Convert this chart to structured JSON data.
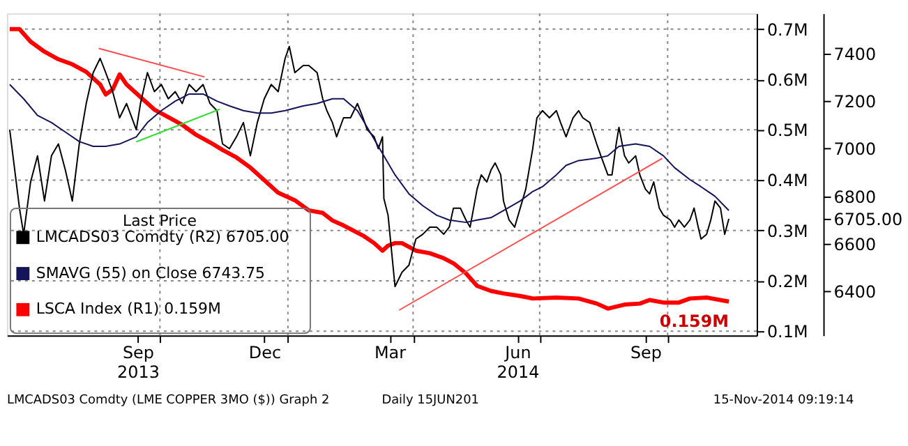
{
  "chart_data": {
    "type": "line",
    "legend_title": "Last Price",
    "legend": "bottom left",
    "grid": true,
    "xlim": [
      "2013-06-13",
      "2014-12-04"
    ],
    "xticks": [
      {
        "value": "2013-09-15",
        "label": "Sep\n2013"
      },
      {
        "value": "2013-10-01",
        "label": null
      },
      {
        "value": "2013-12-15",
        "label": "Dec"
      },
      {
        "value": "2014-01-01",
        "label": null
      },
      {
        "value": "2014-03-15",
        "label": "Mar"
      },
      {
        "value": "2014-04-01",
        "label": null
      },
      {
        "value": "2014-06-15",
        "label": "Jun\n2014"
      },
      {
        "value": "2014-07-01",
        "label": null
      },
      {
        "value": "2014-09-15",
        "label": "Sep"
      },
      {
        "value": "2014-10-01",
        "label": null
      }
    ],
    "ylim": [
      0.092,
      0.731
    ],
    "yticks": [
      {
        "value": 0.1,
        "label": "0.1M"
      },
      {
        "value": 0.2,
        "label": "0.2M"
      },
      {
        "value": 0.3,
        "label": "0.3M"
      },
      {
        "value": 0.4,
        "label": "0.4M"
      },
      {
        "value": 0.5,
        "label": "0.5M"
      },
      {
        "value": 0.6,
        "label": "0.6M"
      },
      {
        "value": 0.7,
        "label": "0.7M"
      }
    ],
    "y2lim": [
      6215,
      7569
    ],
    "y2ticks": [
      6400,
      6600,
      {
        "value": 6705,
        "label": "6705.00"
      },
      6800,
      7000,
      7200,
      7400
    ],
    "series": [
      {
        "name": "LMCADS03 Comdty  (R2)   6705.00",
        "color": "#000000",
        "axis": "y2",
        "x": [
          "2013-06-15",
          "2013-06-22",
          "2013-06-25",
          "2013-06-30",
          "2013-07-05",
          "2013-07-10",
          "2013-07-15",
          "2013-07-20",
          "2013-07-25",
          "2013-07-30",
          "2013-08-04",
          "2013-08-09",
          "2013-08-14",
          "2013-08-19",
          "2013-08-23",
          "2013-08-28",
          "2013-09-02",
          "2013-09-07",
          "2013-09-14",
          "2013-09-17",
          "2013-09-22",
          "2013-09-27",
          "2013-10-02",
          "2013-10-07",
          "2013-10-12",
          "2013-10-17",
          "2013-10-22",
          "2013-10-27",
          "2013-11-01",
          "2013-11-06",
          "2013-11-11",
          "2013-11-15",
          "2013-11-20",
          "2013-11-25",
          "2013-11-30",
          "2013-12-05",
          "2013-12-10",
          "2013-12-15",
          "2013-12-20",
          "2013-12-25",
          "2013-12-30",
          "2014-01-02",
          "2014-01-06",
          "2014-01-12",
          "2014-01-16",
          "2014-01-22",
          "2014-01-26",
          "2014-01-29",
          "2014-02-02",
          "2014-02-05",
          "2014-02-10",
          "2014-02-15",
          "2014-02-20",
          "2014-02-24",
          "2014-02-27",
          "2014-03-04",
          "2014-03-07",
          "2014-03-10",
          "2014-03-11",
          "2014-03-14",
          "2014-03-19",
          "2014-03-24",
          "2014-03-29",
          "2014-04-03",
          "2014-04-08",
          "2014-04-13",
          "2014-04-18",
          "2014-04-23",
          "2014-04-27",
          "2014-04-30",
          "2014-05-05",
          "2014-05-09",
          "2014-05-12",
          "2014-05-17",
          "2014-05-20",
          "2014-05-24",
          "2014-05-27",
          "2014-05-30",
          "2014-06-03",
          "2014-06-05",
          "2014-06-09",
          "2014-06-13",
          "2014-06-17",
          "2014-06-21",
          "2014-06-26",
          "2014-06-29",
          "2014-07-03",
          "2014-07-08",
          "2014-07-13",
          "2014-07-16",
          "2014-07-20",
          "2014-07-25",
          "2014-07-29",
          "2014-08-01",
          "2014-08-06",
          "2014-08-11",
          "2014-08-14",
          "2014-08-19",
          "2014-08-22",
          "2014-08-25",
          "2014-08-27",
          "2014-08-31",
          "2014-09-03",
          "2014-09-08",
          "2014-09-11",
          "2014-09-15",
          "2014-09-18",
          "2014-09-21",
          "2014-09-25",
          "2014-09-28",
          "2014-10-03",
          "2014-10-06",
          "2014-10-09",
          "2014-10-13",
          "2014-10-17",
          "2014-10-20",
          "2014-10-23",
          "2014-10-25",
          "2014-10-29",
          "2014-11-01",
          "2014-11-04",
          "2014-11-08",
          "2014-11-11",
          "2014-11-14"
        ],
        "values": [
          7080,
          6750,
          6640,
          6860,
          6970,
          6780,
          6970,
          7020,
          6910,
          6780,
          7020,
          7190,
          7320,
          7380,
          7320,
          7240,
          7130,
          7190,
          7080,
          7190,
          7320,
          7240,
          7270,
          7210,
          7240,
          7190,
          7270,
          7240,
          7270,
          7190,
          7160,
          7020,
          7000,
          7050,
          7110,
          6970,
          7110,
          7210,
          7270,
          7240,
          7380,
          7430,
          7320,
          7350,
          7350,
          7320,
          7210,
          7160,
          7110,
          7050,
          7130,
          7130,
          7190,
          7130,
          7080,
          7050,
          7000,
          7050,
          6790,
          6720,
          6420,
          6480,
          6510,
          6620,
          6640,
          6670,
          6670,
          6640,
          6670,
          6750,
          6750,
          6700,
          6670,
          6830,
          6890,
          6860,
          6910,
          6940,
          6890,
          6780,
          6700,
          6670,
          6750,
          6830,
          7000,
          7130,
          7160,
          7130,
          7160,
          7110,
          7050,
          7130,
          7160,
          7130,
          7110,
          7020,
          6970,
          6890,
          6890,
          7020,
          7090,
          6970,
          6940,
          6970,
          6890,
          6830,
          6810,
          6860,
          6750,
          6720,
          6700,
          6670,
          6700,
          6670,
          6700,
          6750,
          6670,
          6620,
          6640,
          6700,
          6780,
          6750,
          6640,
          6705
        ]
      },
      {
        "name": "SMAVG (55) on Close        6743.75",
        "color": "#14145a",
        "axis": "y2",
        "x": [
          "2013-06-15",
          "2013-06-25",
          "2013-07-05",
          "2013-07-15",
          "2013-07-25",
          "2013-08-04",
          "2013-08-14",
          "2013-08-23",
          "2013-09-02",
          "2013-09-14",
          "2013-09-22",
          "2013-10-02",
          "2013-10-12",
          "2013-10-22",
          "2013-11-01",
          "2013-11-11",
          "2013-11-20",
          "2013-11-30",
          "2013-12-10",
          "2013-12-20",
          "2013-12-30",
          "2014-01-12",
          "2014-01-22",
          "2014-02-02",
          "2014-02-10",
          "2014-02-20",
          "2014-02-27",
          "2014-03-10",
          "2014-03-19",
          "2014-03-29",
          "2014-04-08",
          "2014-04-18",
          "2014-04-27",
          "2014-05-09",
          "2014-05-17",
          "2014-05-27",
          "2014-06-05",
          "2014-06-17",
          "2014-06-26",
          "2014-07-03",
          "2014-07-13",
          "2014-07-20",
          "2014-07-29",
          "2014-08-11",
          "2014-08-19",
          "2014-08-27",
          "2014-09-08",
          "2014-09-18",
          "2014-09-28",
          "2014-10-06",
          "2014-10-17",
          "2014-10-25",
          "2014-11-04",
          "2014-11-14"
        ],
        "values": [
          7270,
          7210,
          7140,
          7110,
          7070,
          7030,
          7010,
          7010,
          7020,
          7050,
          7110,
          7160,
          7200,
          7230,
          7230,
          7200,
          7180,
          7160,
          7150,
          7150,
          7160,
          7180,
          7190,
          7210,
          7210,
          7160,
          7090,
          6980,
          6890,
          6810,
          6760,
          6720,
          6700,
          6690,
          6700,
          6710,
          6740,
          6780,
          6820,
          6840,
          6890,
          6930,
          6950,
          6960,
          6970,
          7010,
          7020,
          7010,
          6970,
          6920,
          6870,
          6840,
          6800,
          6740
        ]
      },
      {
        "name": "LSCA Index  (R1)              0.159M",
        "color": "#ff0000",
        "axis": "y",
        "x": [
          "2013-06-15",
          "2013-06-22",
          "2013-06-30",
          "2013-07-05",
          "2013-07-10",
          "2013-07-20",
          "2013-07-30",
          "2013-08-09",
          "2013-08-19",
          "2013-08-23",
          "2013-08-28",
          "2013-09-02",
          "2013-09-07",
          "2013-09-17",
          "2013-09-27",
          "2013-10-07",
          "2013-10-17",
          "2013-10-27",
          "2013-11-06",
          "2013-11-15",
          "2013-11-25",
          "2013-12-05",
          "2013-12-15",
          "2013-12-25",
          "2014-01-06",
          "2014-01-16",
          "2014-01-26",
          "2014-02-02",
          "2014-02-10",
          "2014-02-24",
          "2014-03-04",
          "2014-03-10",
          "2014-03-14",
          "2014-03-19",
          "2014-03-24",
          "2014-04-03",
          "2014-04-13",
          "2014-04-23",
          "2014-04-30",
          "2014-05-09",
          "2014-05-17",
          "2014-05-27",
          "2014-06-05",
          "2014-06-17",
          "2014-06-26",
          "2014-07-13",
          "2014-07-29",
          "2014-08-11",
          "2014-08-19",
          "2014-08-31",
          "2014-09-11",
          "2014-09-18",
          "2014-09-28",
          "2014-10-09",
          "2014-10-17",
          "2014-10-29",
          "2014-11-14"
        ],
        "values": [
          0.7,
          0.7,
          0.675,
          0.665,
          0.655,
          0.64,
          0.63,
          0.615,
          0.59,
          0.57,
          0.58,
          0.61,
          0.59,
          0.565,
          0.54,
          0.525,
          0.51,
          0.49,
          0.475,
          0.46,
          0.445,
          0.425,
          0.4,
          0.375,
          0.36,
          0.34,
          0.335,
          0.32,
          0.31,
          0.29,
          0.275,
          0.26,
          0.27,
          0.275,
          0.275,
          0.26,
          0.255,
          0.245,
          0.235,
          0.215,
          0.19,
          0.18,
          0.175,
          0.17,
          0.165,
          0.167,
          0.165,
          0.155,
          0.145,
          0.153,
          0.155,
          0.162,
          0.157,
          0.157,
          0.165,
          0.167,
          0.159
        ]
      },
      {
        "type": "line",
        "color": "#ff4d4d",
        "axis": "y2",
        "x": [
          "2013-08-18",
          "2013-11-02"
        ],
        "values": [
          7422,
          7302
        ]
      },
      {
        "type": "line",
        "color": "#33dd33",
        "axis": "y2",
        "x": [
          "2013-09-14",
          "2013-11-13"
        ],
        "values": [
          7029,
          7166
        ]
      },
      {
        "type": "line",
        "color": "#ff4d4d",
        "axis": "y2",
        "x": [
          "2014-03-22",
          "2014-09-27"
        ],
        "values": [
          6321,
          6959
        ]
      }
    ],
    "annotations": [
      {
        "text": "0.159M",
        "x": "2014-11-14",
        "y": 0.159
      },
      "LMCADS03 Comdty (LME COPPER 3MO ($)) Graph 2",
      "Daily 15JUN201",
      "15-Nov-2014 09:19:14"
    ]
  }
}
